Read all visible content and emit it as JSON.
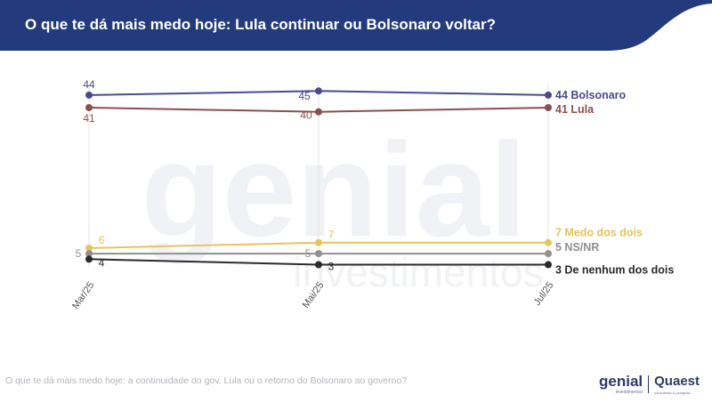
{
  "header": {
    "title": "O que te dá mais medo hoje: Lula continuar ou Bolsonaro voltar?",
    "background_color": "#233a7c"
  },
  "footer": {
    "question": "O que te dá mais medo hoje: a continuidade do gov. Lula ou o retorno do Bolsonaro ao governo?",
    "logo_genial": "genial",
    "logo_genial_sub": "investimentos",
    "logo_quaest": "Quaest",
    "logo_quaest_sub": "consultoria & pesquisa"
  },
  "watermark": {
    "text_main": "genial",
    "text_sub": "investimentos"
  },
  "chart_data": {
    "type": "line",
    "title": "",
    "xlabel": "",
    "ylabel": "",
    "categories": [
      "Mar/25",
      "Mai/25",
      "Jul/25"
    ],
    "ylim": [
      0,
      50
    ],
    "grid": "vertical",
    "series": [
      {
        "name": "Bolsonaro",
        "color": "#4b4a8e",
        "values": [
          44,
          45,
          44
        ],
        "labels": [
          "44",
          "45",
          ""
        ],
        "end_label": "44 Bolsonaro"
      },
      {
        "name": "Lula",
        "color": "#8a4f4f",
        "values": [
          41,
          40,
          41
        ],
        "labels": [
          "41",
          "40",
          ""
        ],
        "end_label": "41 Lula"
      },
      {
        "name": "Medo dos dois",
        "color": "#e8c45c",
        "values": [
          6,
          7,
          7
        ],
        "labels": [
          "6",
          "7",
          ""
        ],
        "end_label": "7 Medo dos dois"
      },
      {
        "name": "NS/NR",
        "color": "#8f8f8f",
        "values": [
          5,
          5,
          5
        ],
        "labels": [
          "5",
          "5",
          ""
        ],
        "end_label": "5 NS/NR"
      },
      {
        "name": "De nenhum dos dois",
        "color": "#2b2b2b",
        "values": [
          4,
          3,
          3
        ],
        "labels": [
          "4",
          "3",
          ""
        ],
        "end_label": "3 De nenhum dos dois"
      }
    ]
  }
}
